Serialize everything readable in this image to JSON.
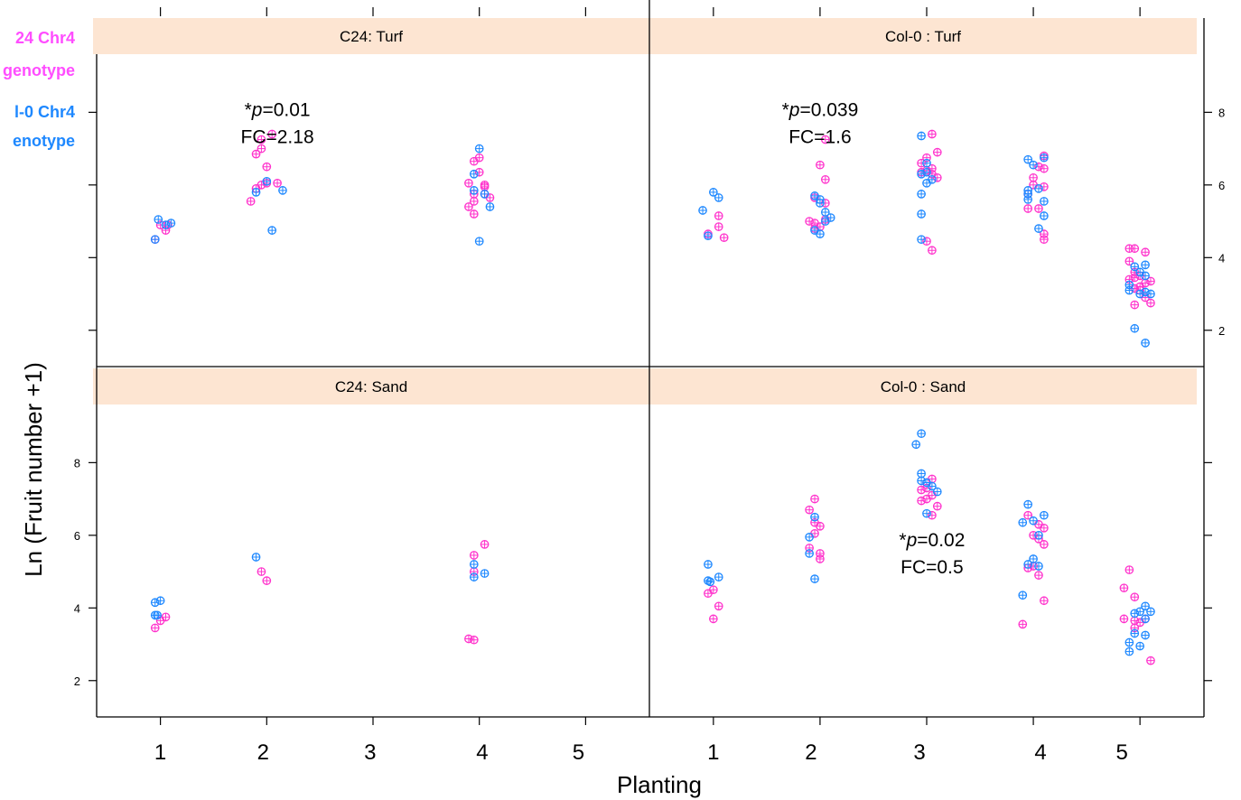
{
  "chart_data": {
    "type": "scatter",
    "xlabel": "Planting",
    "ylabel": "Ln (Fruit number +1)",
    "x_ticks": [
      "1",
      "2",
      "3",
      "4",
      "5"
    ],
    "y_ticks": [
      "2",
      "4",
      "6",
      "8"
    ],
    "ylim": [
      1,
      9.6
    ],
    "xlim": [
      0.4,
      5.6
    ],
    "grid": false,
    "legend": {
      "placement": "top-left",
      "entries": [
        {
          "lines": [
            "24 Chr4",
            "genotype"
          ],
          "color": "#ff4dff"
        },
        {
          "lines": [
            "l-0 Chr4",
            "enotype"
          ],
          "color": "#1e88ff"
        }
      ]
    },
    "colors": {
      "c24": "#ff33cc",
      "col0": "#1e88ff",
      "strip": "#fde5d2"
    },
    "panels": [
      {
        "title": "C24: Turf",
        "annotations": [
          {
            "lines": [
              "*p=0.01",
              "FC=2.18"
            ],
            "x": 2.1,
            "y": 7.9
          }
        ],
        "series": [
          {
            "color": "c24",
            "points": [
              [
                0.95,
                4.5
              ],
              [
                1.0,
                4.9
              ],
              [
                1.05,
                4.75
              ],
              [
                1.07,
                4.9
              ],
              [
                1.95,
                7.25
              ],
              [
                2.05,
                7.4
              ],
              [
                1.9,
                6.85
              ],
              [
                1.95,
                7.0
              ],
              [
                2.0,
                6.5
              ],
              [
                1.9,
                5.9
              ],
              [
                1.85,
                5.55
              ],
              [
                2.0,
                6.05
              ],
              [
                2.1,
                6.05
              ],
              [
                1.95,
                6.0
              ],
              [
                3.95,
                6.65
              ],
              [
                4.0,
                6.35
              ],
              [
                3.9,
                6.05
              ],
              [
                4.05,
                6.0
              ],
              [
                3.95,
                5.75
              ],
              [
                4.05,
                5.75
              ],
              [
                4.1,
                5.65
              ],
              [
                3.9,
                5.4
              ],
              [
                3.95,
                5.55
              ],
              [
                3.95,
                5.2
              ],
              [
                4.05,
                5.95
              ],
              [
                4.0,
                6.75
              ]
            ]
          },
          {
            "color": "col0",
            "points": [
              [
                0.95,
                4.5
              ],
              [
                0.98,
                5.05
              ],
              [
                1.05,
                4.9
              ],
              [
                1.1,
                4.95
              ],
              [
                1.9,
                5.8
              ],
              [
                2.15,
                5.85
              ],
              [
                2.0,
                6.1
              ],
              [
                2.05,
                4.75
              ],
              [
                4.0,
                7.0
              ],
              [
                3.95,
                6.3
              ],
              [
                3.95,
                5.85
              ],
              [
                4.1,
                5.4
              ],
              [
                4.05,
                5.75
              ],
              [
                4.0,
                4.45
              ]
            ]
          }
        ]
      },
      {
        "title": "Col-0 : Turf",
        "annotations": [
          {
            "lines": [
              "*p=0.039",
              "FC=1.6"
            ],
            "x": 2.0,
            "y": 7.9
          }
        ],
        "series": [
          {
            "color": "c24",
            "points": [
              [
                1.05,
                5.15
              ],
              [
                1.05,
                4.85
              ],
              [
                0.95,
                4.65
              ],
              [
                1.1,
                4.55
              ],
              [
                2.05,
                7.25
              ],
              [
                2.0,
                6.55
              ],
              [
                2.05,
                6.15
              ],
              [
                1.95,
                5.65
              ],
              [
                2.05,
                5.5
              ],
              [
                1.95,
                4.95
              ],
              [
                2.0,
                4.85
              ],
              [
                1.9,
                5.0
              ],
              [
                2.05,
                5.05
              ],
              [
                1.95,
                4.8
              ],
              [
                3.05,
                7.4
              ],
              [
                3.0,
                6.75
              ],
              [
                3.1,
                6.9
              ],
              [
                2.95,
                6.6
              ],
              [
                3.0,
                6.4
              ],
              [
                3.05,
                6.3
              ],
              [
                3.1,
                6.2
              ],
              [
                2.95,
                6.35
              ],
              [
                3.0,
                4.45
              ],
              [
                3.05,
                4.2
              ],
              [
                3.05,
                6.45
              ],
              [
                4.1,
                6.8
              ],
              [
                4.05,
                6.5
              ],
              [
                4.1,
                6.45
              ],
              [
                4.0,
                6.0
              ],
              [
                4.1,
                5.95
              ],
              [
                3.95,
                5.75
              ],
              [
                3.95,
                5.35
              ],
              [
                4.05,
                5.35
              ],
              [
                4.1,
                4.65
              ],
              [
                4.1,
                4.5
              ],
              [
                4.0,
                6.2
              ],
              [
                4.9,
                4.25
              ],
              [
                4.95,
                4.25
              ],
              [
                5.05,
                4.15
              ],
              [
                4.9,
                3.9
              ],
              [
                4.95,
                3.6
              ],
              [
                5.0,
                3.5
              ],
              [
                5.05,
                3.3
              ],
              [
                5.1,
                3.35
              ],
              [
                4.9,
                3.4
              ],
              [
                4.95,
                3.15
              ],
              [
                5.0,
                3.1
              ],
              [
                5.05,
                2.9
              ],
              [
                5.1,
                2.75
              ],
              [
                4.95,
                2.7
              ],
              [
                5.0,
                3.2
              ],
              [
                4.95,
                3.45
              ]
            ]
          },
          {
            "color": "col0",
            "points": [
              [
                1.0,
                5.8
              ],
              [
                1.05,
                5.65
              ],
              [
                0.9,
                5.3
              ],
              [
                0.95,
                4.6
              ],
              [
                1.95,
                5.7
              ],
              [
                2.0,
                5.5
              ],
              [
                2.05,
                5.25
              ],
              [
                2.1,
                5.1
              ],
              [
                1.95,
                4.75
              ],
              [
                2.05,
                5.0
              ],
              [
                2.0,
                4.65
              ],
              [
                2.0,
                5.6
              ],
              [
                2.95,
                7.35
              ],
              [
                3.0,
                6.6
              ],
              [
                2.95,
                6.3
              ],
              [
                3.0,
                6.35
              ],
              [
                3.05,
                6.15
              ],
              [
                2.95,
                5.75
              ],
              [
                2.95,
                5.2
              ],
              [
                3.0,
                6.05
              ],
              [
                2.95,
                4.5
              ],
              [
                3.95,
                6.7
              ],
              [
                4.0,
                6.55
              ],
              [
                4.1,
                6.75
              ],
              [
                3.95,
                5.85
              ],
              [
                4.05,
                5.9
              ],
              [
                3.95,
                5.6
              ],
              [
                4.1,
                5.55
              ],
              [
                4.1,
                5.15
              ],
              [
                4.05,
                4.8
              ],
              [
                3.95,
                5.75
              ],
              [
                4.95,
                3.75
              ],
              [
                5.05,
                3.8
              ],
              [
                5.0,
                3.6
              ],
              [
                5.05,
                3.5
              ],
              [
                4.9,
                3.25
              ],
              [
                5.0,
                3.0
              ],
              [
                5.05,
                3.05
              ],
              [
                5.1,
                3.0
              ],
              [
                4.95,
                2.05
              ],
              [
                5.05,
                1.65
              ],
              [
                4.9,
                3.1
              ]
            ]
          }
        ]
      },
      {
        "title": "C24: Sand",
        "annotations": [],
        "series": [
          {
            "color": "c24",
            "points": [
              [
                0.95,
                3.45
              ],
              [
                1.0,
                3.65
              ],
              [
                1.05,
                3.75
              ],
              [
                1.95,
                5.0
              ],
              [
                2.0,
                4.75
              ],
              [
                4.05,
                5.75
              ],
              [
                3.95,
                5.45
              ],
              [
                3.95,
                5.0
              ],
              [
                3.9,
                3.15
              ],
              [
                3.95,
                3.12
              ]
            ]
          },
          {
            "color": "col0",
            "points": [
              [
                0.95,
                4.15
              ],
              [
                1.0,
                4.2
              ],
              [
                0.95,
                3.8
              ],
              [
                0.97,
                3.8
              ],
              [
                1.9,
                5.4
              ],
              [
                3.95,
                5.2
              ],
              [
                4.05,
                4.95
              ],
              [
                3.95,
                4.85
              ]
            ]
          }
        ]
      },
      {
        "title": "Col-0 : Sand",
        "annotations": [
          {
            "lines": [
              "*p=0.02",
              "FC=0.5"
            ],
            "x": 3.05,
            "y": 5.7
          }
        ],
        "series": [
          {
            "color": "c24",
            "points": [
              [
                1.0,
                4.5
              ],
              [
                1.05,
                4.05
              ],
              [
                0.95,
                4.4
              ],
              [
                1.0,
                3.7
              ],
              [
                1.95,
                7.0
              ],
              [
                1.9,
                6.7
              ],
              [
                1.95,
                6.35
              ],
              [
                2.0,
                6.25
              ],
              [
                1.95,
                6.05
              ],
              [
                1.9,
                5.65
              ],
              [
                2.0,
                5.5
              ],
              [
                2.0,
                5.35
              ],
              [
                3.05,
                7.55
              ],
              [
                3.0,
                7.3
              ],
              [
                2.95,
                7.25
              ],
              [
                3.05,
                7.1
              ],
              [
                3.0,
                7.0
              ],
              [
                2.95,
                6.95
              ],
              [
                3.1,
                6.8
              ],
              [
                3.05,
                6.55
              ],
              [
                3.0,
                7.45
              ],
              [
                3.95,
                6.55
              ],
              [
                4.05,
                6.3
              ],
              [
                4.1,
                6.2
              ],
              [
                4.0,
                6.0
              ],
              [
                4.05,
                5.9
              ],
              [
                4.1,
                5.75
              ],
              [
                4.0,
                5.15
              ],
              [
                3.95,
                5.1
              ],
              [
                4.05,
                4.9
              ],
              [
                3.9,
                3.55
              ],
              [
                4.1,
                4.2
              ],
              [
                4.9,
                5.05
              ],
              [
                4.85,
                4.55
              ],
              [
                4.95,
                4.3
              ],
              [
                4.85,
                3.7
              ],
              [
                4.95,
                3.65
              ],
              [
                5.05,
                3.7
              ],
              [
                4.95,
                3.45
              ],
              [
                5.1,
                2.55
              ],
              [
                5.0,
                3.6
              ]
            ]
          },
          {
            "color": "col0",
            "points": [
              [
                0.95,
                5.2
              ],
              [
                1.05,
                4.85
              ],
              [
                0.95,
                4.75
              ],
              [
                0.97,
                4.72
              ],
              [
                1.95,
                6.5
              ],
              [
                1.9,
                5.95
              ],
              [
                1.9,
                5.5
              ],
              [
                1.95,
                4.8
              ],
              [
                2.95,
                8.8
              ],
              [
                2.9,
                8.5
              ],
              [
                2.95,
                7.7
              ],
              [
                3.0,
                7.45
              ],
              [
                3.05,
                7.35
              ],
              [
                3.1,
                7.2
              ],
              [
                3.0,
                6.6
              ],
              [
                2.95,
                7.5
              ],
              [
                3.95,
                6.85
              ],
              [
                3.9,
                6.35
              ],
              [
                4.0,
                6.4
              ],
              [
                4.1,
                6.55
              ],
              [
                4.05,
                6.0
              ],
              [
                3.95,
                5.2
              ],
              [
                4.05,
                5.15
              ],
              [
                3.9,
                4.35
              ],
              [
                4.0,
                5.35
              ],
              [
                4.95,
                3.85
              ],
              [
                5.05,
                4.05
              ],
              [
                5.1,
                3.9
              ],
              [
                5.0,
                3.9
              ],
              [
                4.95,
                3.3
              ],
              [
                5.05,
                3.25
              ],
              [
                4.9,
                3.05
              ],
              [
                5.0,
                2.95
              ],
              [
                4.9,
                2.8
              ],
              [
                5.05,
                3.7
              ]
            ]
          }
        ]
      }
    ]
  }
}
